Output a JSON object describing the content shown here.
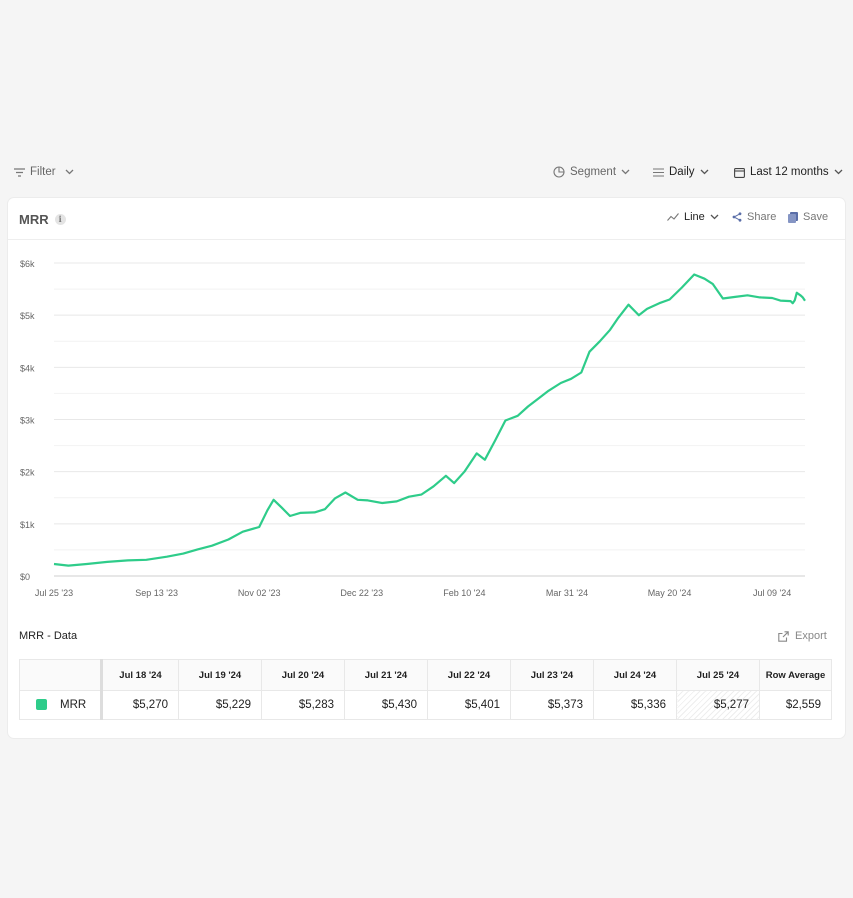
{
  "toolbar": {
    "filter_label": "Filter",
    "segment_label": "Segment",
    "interval_label": "Daily",
    "range_label": "Last 12 months"
  },
  "card": {
    "title": "MRR",
    "info_glyph": "i",
    "chart_type_label": "Line",
    "share_label": "Share",
    "save_label": "Save"
  },
  "colors": {
    "series": "#2ecc8a",
    "grid": "#ececec"
  },
  "chart_data": {
    "type": "line",
    "title": "",
    "xlabel": "",
    "ylabel": "",
    "ylim": [
      0,
      6000
    ],
    "y_ticks": [
      {
        "value": 0,
        "label": "$0"
      },
      {
        "value": 1000,
        "label": "$1k"
      },
      {
        "value": 2000,
        "label": "$2k"
      },
      {
        "value": 3000,
        "label": "$3k"
      },
      {
        "value": 4000,
        "label": "$4k"
      },
      {
        "value": 5000,
        "label": "$5k"
      },
      {
        "value": 6000,
        "label": "$6k"
      }
    ],
    "x_ticks": [
      {
        "date": "2023-07-25",
        "label": "Jul 25 '23"
      },
      {
        "date": "2023-09-13",
        "label": "Sep 13 '23"
      },
      {
        "date": "2023-11-02",
        "label": "Nov 02 '23"
      },
      {
        "date": "2023-12-22",
        "label": "Dec 22 '23"
      },
      {
        "date": "2024-02-10",
        "label": "Feb 10 '24"
      },
      {
        "date": "2024-03-31",
        "label": "Mar 31 '24"
      },
      {
        "date": "2024-05-20",
        "label": "May 20 '24"
      },
      {
        "date": "2024-07-09",
        "label": "Jul 09 '24"
      }
    ],
    "xlim": [
      "2023-07-25",
      "2024-07-25"
    ],
    "grid": true,
    "legend": "none",
    "series": [
      {
        "name": "MRR",
        "points": [
          [
            "2023-07-25",
            230
          ],
          [
            "2023-08-01",
            200
          ],
          [
            "2023-08-10",
            230
          ],
          [
            "2023-08-20",
            270
          ],
          [
            "2023-08-30",
            300
          ],
          [
            "2023-09-08",
            310
          ],
          [
            "2023-09-18",
            370
          ],
          [
            "2023-09-26",
            430
          ],
          [
            "2023-10-03",
            510
          ],
          [
            "2023-10-10",
            580
          ],
          [
            "2023-10-18",
            700
          ],
          [
            "2023-10-25",
            850
          ],
          [
            "2023-11-02",
            940
          ],
          [
            "2023-11-06",
            1260
          ],
          [
            "2023-11-09",
            1460
          ],
          [
            "2023-11-13",
            1310
          ],
          [
            "2023-11-17",
            1150
          ],
          [
            "2023-11-22",
            1210
          ],
          [
            "2023-11-29",
            1220
          ],
          [
            "2023-12-04",
            1280
          ],
          [
            "2023-12-09",
            1490
          ],
          [
            "2023-12-14",
            1600
          ],
          [
            "2023-12-20",
            1460
          ],
          [
            "2023-12-25",
            1450
          ],
          [
            "2024-01-01",
            1400
          ],
          [
            "2024-01-08",
            1430
          ],
          [
            "2024-01-14",
            1520
          ],
          [
            "2024-01-20",
            1560
          ],
          [
            "2024-01-26",
            1720
          ],
          [
            "2024-02-01",
            1920
          ],
          [
            "2024-02-05",
            1780
          ],
          [
            "2024-02-10",
            2000
          ],
          [
            "2024-02-16",
            2350
          ],
          [
            "2024-02-20",
            2230
          ],
          [
            "2024-02-25",
            2600
          ],
          [
            "2024-03-01",
            2980
          ],
          [
            "2024-03-07",
            3070
          ],
          [
            "2024-03-12",
            3250
          ],
          [
            "2024-03-17",
            3400
          ],
          [
            "2024-03-22",
            3550
          ],
          [
            "2024-03-28",
            3700
          ],
          [
            "2024-04-02",
            3780
          ],
          [
            "2024-04-07",
            3900
          ],
          [
            "2024-04-11",
            4300
          ],
          [
            "2024-04-16",
            4500
          ],
          [
            "2024-04-21",
            4720
          ],
          [
            "2024-04-25",
            4950
          ],
          [
            "2024-04-30",
            5200
          ],
          [
            "2024-05-05",
            5000
          ],
          [
            "2024-05-09",
            5120
          ],
          [
            "2024-05-15",
            5230
          ],
          [
            "2024-05-20",
            5300
          ],
          [
            "2024-05-26",
            5530
          ],
          [
            "2024-06-01",
            5780
          ],
          [
            "2024-06-06",
            5700
          ],
          [
            "2024-06-10",
            5600
          ],
          [
            "2024-06-15",
            5320
          ],
          [
            "2024-06-21",
            5350
          ],
          [
            "2024-06-27",
            5380
          ],
          [
            "2024-07-03",
            5340
          ],
          [
            "2024-07-09",
            5330
          ],
          [
            "2024-07-13",
            5280
          ],
          [
            "2024-07-18",
            5270
          ],
          [
            "2024-07-19",
            5229
          ],
          [
            "2024-07-20",
            5283
          ],
          [
            "2024-07-21",
            5430
          ],
          [
            "2024-07-22",
            5401
          ],
          [
            "2024-07-23",
            5373
          ],
          [
            "2024-07-24",
            5336
          ],
          [
            "2024-07-25",
            5277
          ]
        ]
      }
    ]
  },
  "data_section": {
    "title": "MRR - Data",
    "export_label": "Export",
    "columns": [
      "Jul 18 '24",
      "Jul 19 '24",
      "Jul 20 '24",
      "Jul 21 '24",
      "Jul 22 '24",
      "Jul 23 '24",
      "Jul 24 '24",
      "Jul 25 '24"
    ],
    "average_label": "Row Average",
    "row": {
      "label": "MRR",
      "values": [
        "$5,270",
        "$5,229",
        "$5,283",
        "$5,430",
        "$5,401",
        "$5,373",
        "$5,336",
        "$5,277"
      ],
      "average": "$2,559"
    }
  }
}
